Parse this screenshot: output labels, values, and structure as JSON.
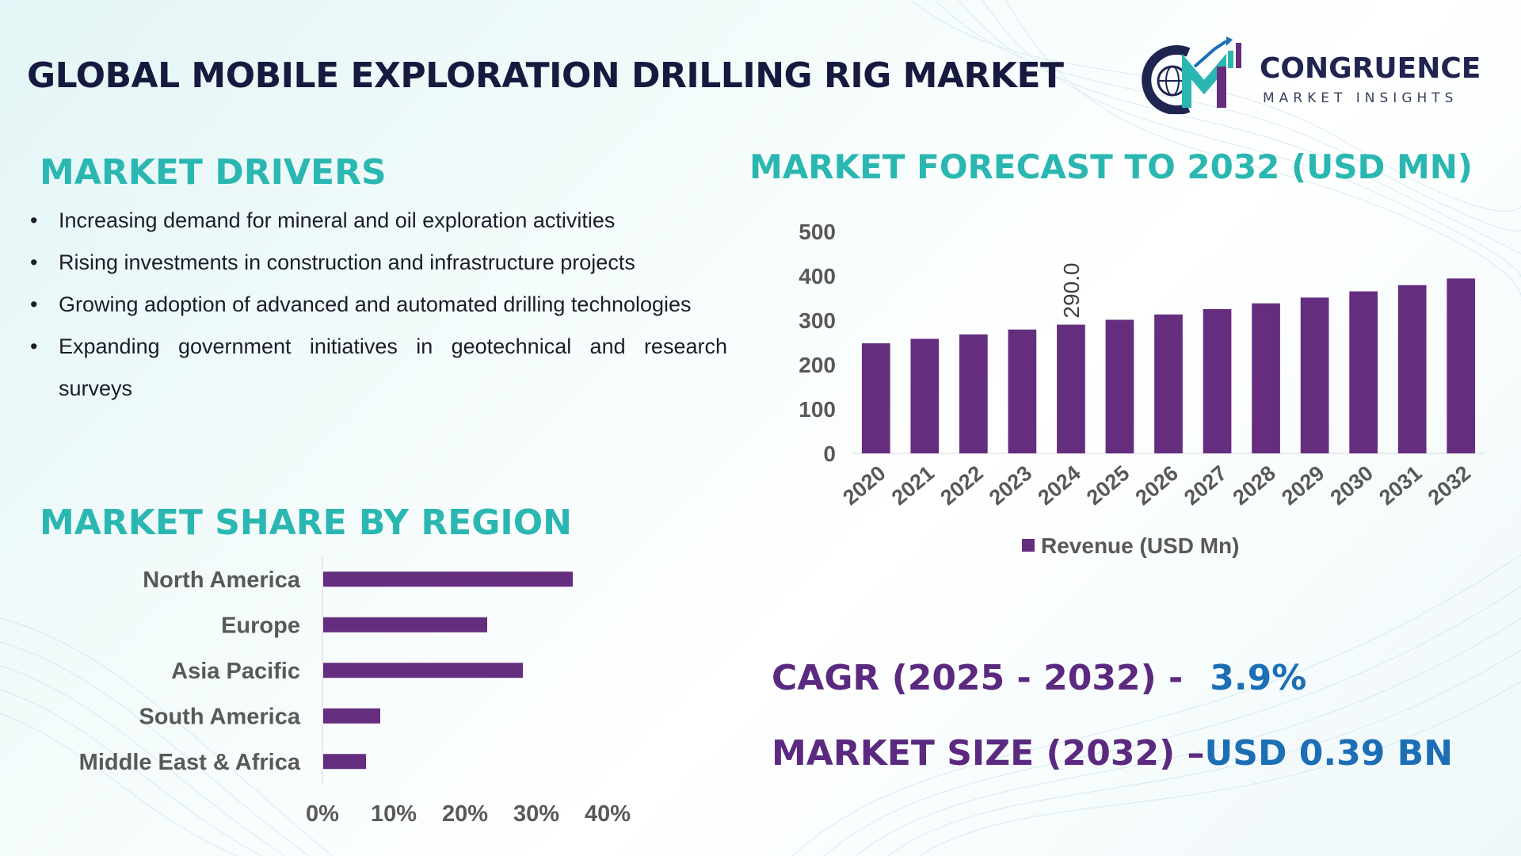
{
  "title": "GLOBAL MOBILE EXPLORATION DRILLING RIG MARKET",
  "logo": {
    "name": "CONGRUENCE",
    "tagline": "MARKET INSIGHTS",
    "icon": "cm-globe-growth-icon"
  },
  "drivers": {
    "title": "MARKET DRIVERS",
    "items": [
      "Increasing demand for mineral and oil exploration activities",
      "Rising investments in construction and infrastructure projects",
      "Growing adoption of advanced and automated drilling technologies",
      "Expanding government initiatives in geotechnical and research surveys"
    ]
  },
  "region": {
    "title": "MARKET SHARE BY REGION"
  },
  "forecast": {
    "title": "MARKET FORECAST TO 2032 (USD MN)"
  },
  "kpis": {
    "cagr_label": "CAGR (2025 - 2032) -",
    "cagr_value": "3.9%",
    "size_label": "MARKET SIZE (2032) –",
    "size_value": "USD 0.39 BN"
  },
  "colors": {
    "bar": "#652d7e",
    "section_title": "#2bb7b1",
    "kpi_label": "#5b2a80",
    "kpi_value": "#1c6fb5",
    "title": "#171a3e"
  },
  "chart_data": [
    {
      "type": "bar",
      "categories": [
        "2020",
        "2021",
        "2022",
        "2023",
        "2024",
        "2025",
        "2026",
        "2027",
        "2028",
        "2029",
        "2030",
        "2031",
        "2032"
      ],
      "series": [
        {
          "name": "Revenue (USD Mn)",
          "values": [
            248,
            258,
            268,
            279,
            290,
            301,
            313,
            325,
            338,
            351,
            365,
            379,
            394
          ]
        }
      ],
      "data_labels": [
        {
          "category": "2024",
          "text": "290.0"
        }
      ],
      "yticks": [
        "0",
        "100",
        "200",
        "300",
        "400",
        "500"
      ],
      "ylim": [
        0,
        500
      ],
      "legend": "bottom",
      "grid": false
    },
    {
      "type": "bar",
      "orientation": "horizontal",
      "categories": [
        "North America",
        "Europe",
        "Asia Pacific",
        "South America",
        "Middle East & Africa"
      ],
      "values": [
        35,
        23,
        28,
        8,
        6
      ],
      "xticks": [
        "0%",
        "10%",
        "20%",
        "30%",
        "40%"
      ],
      "xlim": [
        0,
        40
      ],
      "grid": false
    }
  ]
}
